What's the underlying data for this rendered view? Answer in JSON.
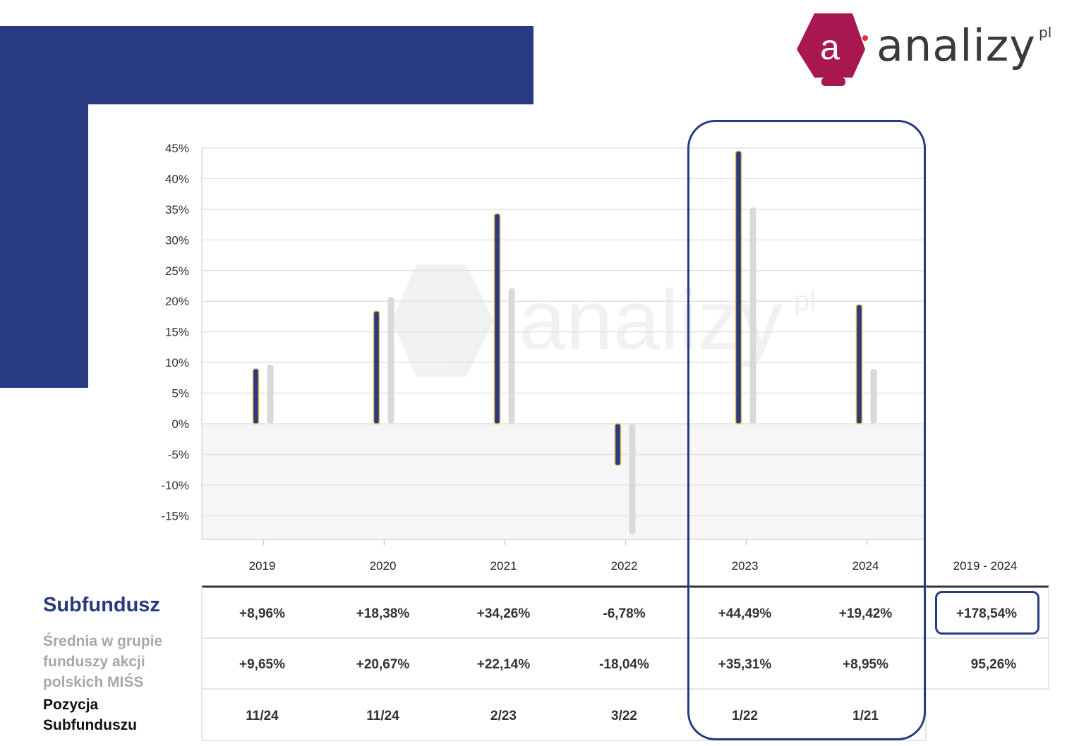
{
  "logo": {
    "word": "analizy",
    "sup": "pl",
    "letter": "a"
  },
  "table": {
    "row_labels": {
      "fund": "Subfundusz",
      "avg": "Średnia w grupie funduszy akcji polskich MIŚS",
      "pos": "Pozycja Subfunduszu"
    },
    "total_header": "2019 - 2024",
    "fund_values": [
      "+8,96%",
      "+18,38%",
      "+34,26%",
      "-6,78%",
      "+44,49%",
      "+19,42%"
    ],
    "avg_values": [
      "+9,65%",
      "+20,67%",
      "+22,14%",
      "-18,04%",
      "+35,31%",
      "+8,95%"
    ],
    "pos_values": [
      "11/24",
      "11/24",
      "2/23",
      "3/22",
      "1/22",
      "1/21"
    ],
    "fund_total": "+178,54%",
    "avg_total": "95,26%"
  },
  "colors": {
    "brand_blue": "#283a82",
    "bar_outline": "#e8b84a",
    "avg_bar": "#d9d9d9",
    "logo_magenta": "#a8174f"
  },
  "chart_data": {
    "type": "bar",
    "categories": [
      "2019",
      "2020",
      "2021",
      "2022",
      "2023",
      "2024"
    ],
    "series": [
      {
        "values": [
          8.96,
          18.38,
          34.26,
          -6.78,
          44.49,
          19.42
        ]
      },
      {
        "values": [
          9.65,
          20.67,
          22.14,
          -18.04,
          35.31,
          8.95
        ]
      }
    ],
    "yticks": [
      "45%",
      "40%",
      "35%",
      "30%",
      "25%",
      "20%",
      "15%",
      "10%",
      "5%",
      "0%",
      "-5%",
      "-10%",
      "-15%"
    ],
    "ylim": [
      -19,
      45
    ],
    "grid": true,
    "highlight_categories": [
      "2023",
      "2024"
    ]
  }
}
